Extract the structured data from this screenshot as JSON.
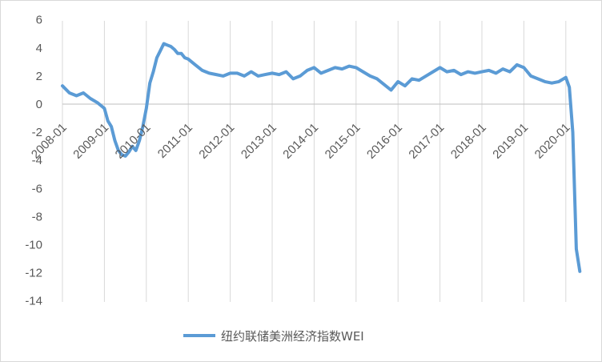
{
  "chart_data": {
    "type": "line",
    "title": "",
    "xlabel": "",
    "ylabel": "",
    "ylim": [
      -14,
      6
    ],
    "yticks": [
      6,
      4,
      2,
      0,
      -2,
      -4,
      -6,
      -8,
      -10,
      -12,
      -14
    ],
    "xticks": [
      "2008-01",
      "2009-01",
      "2010-01",
      "2011-01",
      "2012-01",
      "2013-01",
      "2014-01",
      "2015-01",
      "2016-01",
      "2017-01",
      "2018-01",
      "2019-01",
      "2020-01"
    ],
    "grid": {
      "x": true,
      "y": false
    },
    "legend": "bottom",
    "color": "#5b9bd5",
    "series": [
      {
        "name": "纽约联储美洲经济指数WEI",
        "x": [
          "2008-01",
          "2008-03",
          "2008-05",
          "2008-07",
          "2008-09",
          "2008-11",
          "2009-01",
          "2009-02",
          "2009-03",
          "2009-04",
          "2009-05",
          "2009-06",
          "2009-07",
          "2009-08",
          "2009-09",
          "2009-10",
          "2009-11",
          "2009-12",
          "2010-01",
          "2010-02",
          "2010-03",
          "2010-04",
          "2010-05",
          "2010-06",
          "2010-07",
          "2010-08",
          "2010-09",
          "2010-10",
          "2010-11",
          "2010-12",
          "2011-01",
          "2011-03",
          "2011-05",
          "2011-07",
          "2011-09",
          "2011-11",
          "2012-01",
          "2012-03",
          "2012-05",
          "2012-07",
          "2012-09",
          "2012-11",
          "2013-01",
          "2013-03",
          "2013-05",
          "2013-07",
          "2013-09",
          "2013-11",
          "2014-01",
          "2014-03",
          "2014-05",
          "2014-07",
          "2014-09",
          "2014-11",
          "2015-01",
          "2015-03",
          "2015-05",
          "2015-07",
          "2015-09",
          "2015-11",
          "2016-01",
          "2016-03",
          "2016-05",
          "2016-07",
          "2016-09",
          "2016-11",
          "2017-01",
          "2017-03",
          "2017-05",
          "2017-07",
          "2017-09",
          "2017-11",
          "2018-01",
          "2018-03",
          "2018-05",
          "2018-07",
          "2018-09",
          "2018-11",
          "2019-01",
          "2019-03",
          "2019-05",
          "2019-07",
          "2019-09",
          "2019-11",
          "2020-01",
          "2020-02",
          "2020-03",
          "2020-04",
          "2020-05"
        ],
        "values": [
          1.3,
          0.8,
          0.6,
          0.8,
          0.4,
          0.1,
          -0.3,
          -1.2,
          -1.6,
          -2.6,
          -3.3,
          -3.6,
          -3.7,
          -3.4,
          -3.0,
          -3.3,
          -2.6,
          -1.6,
          -0.3,
          1.5,
          2.3,
          3.3,
          3.8,
          4.3,
          4.2,
          4.1,
          3.9,
          3.6,
          3.6,
          3.3,
          3.2,
          2.8,
          2.4,
          2.2,
          2.1,
          2.0,
          2.2,
          2.2,
          2.0,
          2.3,
          2.0,
          2.1,
          2.2,
          2.1,
          2.3,
          1.8,
          2.0,
          2.4,
          2.6,
          2.2,
          2.4,
          2.6,
          2.5,
          2.7,
          2.6,
          2.3,
          2.0,
          1.8,
          1.4,
          1.0,
          1.6,
          1.3,
          1.8,
          1.7,
          2.0,
          2.3,
          2.6,
          2.3,
          2.4,
          2.1,
          2.3,
          2.2,
          2.3,
          2.4,
          2.2,
          2.5,
          2.3,
          2.8,
          2.6,
          2.0,
          1.8,
          1.6,
          1.5,
          1.6,
          1.9,
          1.2,
          -2.0,
          -10.3,
          -11.9
        ]
      }
    ]
  }
}
